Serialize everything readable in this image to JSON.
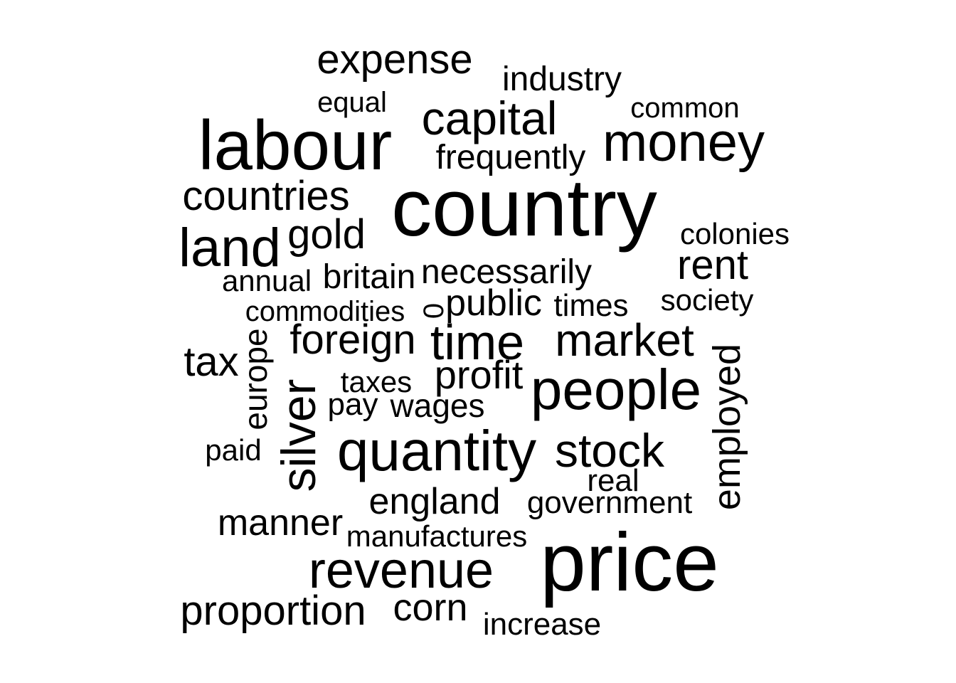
{
  "words": [
    {
      "text": "expense"
    },
    {
      "text": "industry"
    },
    {
      "text": "equal"
    },
    {
      "text": "common"
    },
    {
      "text": "capital"
    },
    {
      "text": "labour"
    },
    {
      "text": "money"
    },
    {
      "text": "frequently"
    },
    {
      "text": "countries"
    },
    {
      "text": "country"
    },
    {
      "text": "colonies"
    },
    {
      "text": "land"
    },
    {
      "text": "gold"
    },
    {
      "text": "rent"
    },
    {
      "text": "annual"
    },
    {
      "text": "britain"
    },
    {
      "text": "necessarily"
    },
    {
      "text": "society"
    },
    {
      "text": "commodities"
    },
    {
      "text": "0"
    },
    {
      "text": "public"
    },
    {
      "text": "times"
    },
    {
      "text": "europe"
    },
    {
      "text": "foreign"
    },
    {
      "text": "time"
    },
    {
      "text": "market"
    },
    {
      "text": "tax"
    },
    {
      "text": "employed"
    },
    {
      "text": "profit"
    },
    {
      "text": "taxes"
    },
    {
      "text": "silver"
    },
    {
      "text": "people"
    },
    {
      "text": "pay"
    },
    {
      "text": "wages"
    },
    {
      "text": "paid"
    },
    {
      "text": "quantity"
    },
    {
      "text": "stock"
    },
    {
      "text": "real"
    },
    {
      "text": "england"
    },
    {
      "text": "government"
    },
    {
      "text": "manner"
    },
    {
      "text": "manufactures"
    },
    {
      "text": "revenue"
    },
    {
      "text": "price"
    },
    {
      "text": "proportion"
    },
    {
      "text": "corn"
    },
    {
      "text": "increase"
    }
  ]
}
